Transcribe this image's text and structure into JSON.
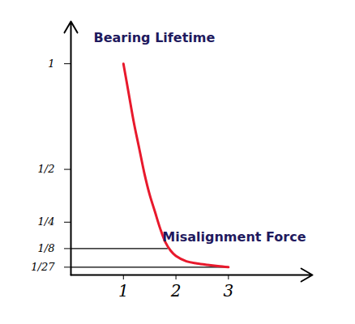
{
  "chart_data": {
    "type": "line",
    "ylabel": "Bearing Lifetime",
    "xlabel": "Misalignment Force",
    "x": [
      1,
      1.1,
      1.2,
      1.3,
      1.4,
      1.5,
      1.6,
      1.7,
      1.8,
      1.9,
      2,
      2.2,
      2.4,
      2.6,
      2.8,
      3
    ],
    "values": [
      1,
      0.86,
      0.72,
      0.6,
      0.48,
      0.38,
      0.3,
      0.22,
      0.155,
      0.115,
      0.09,
      0.065,
      0.055,
      0.048,
      0.042,
      0.037
    ],
    "color": "#e8192c",
    "xlim": [
      0,
      4.6
    ],
    "ylim": [
      0,
      1.2
    ],
    "xticks": [
      1,
      2,
      3
    ],
    "yticks": [
      1,
      {
        "value": 0.5,
        "label": "1/2"
      },
      {
        "value": 0.25,
        "label": "1/4"
      },
      {
        "value": 0.125,
        "label": "1/8"
      },
      {
        "value": 0.037,
        "label": "1/27"
      }
    ],
    "reference_lines": [
      {
        "y": 0.125,
        "x_end": 1.85
      },
      {
        "y": 0.037,
        "x_end": 3
      }
    ],
    "grid": false
  }
}
